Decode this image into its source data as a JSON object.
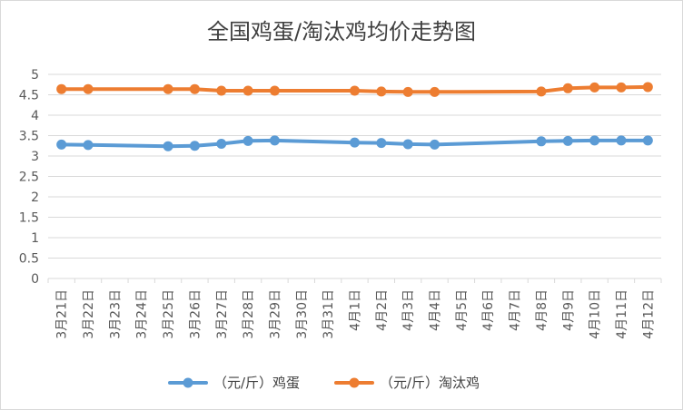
{
  "chart_data": {
    "type": "line",
    "title": "全国鸡蛋/淘汰鸡均价走势图",
    "xlabel": "",
    "ylabel": "",
    "ylim": [
      0,
      5
    ],
    "y_ticks": [
      "0",
      "0.5",
      "1",
      "1.5",
      "2",
      "2.5",
      "3",
      "3.5",
      "4",
      "4.5",
      "5"
    ],
    "grid": "horizontal",
    "legend_position": "bottom",
    "categories": [
      "3月21日",
      "3月22日",
      "3月23日",
      "3月24日",
      "3月25日",
      "3月26日",
      "3月27日",
      "3月28日",
      "3月29日",
      "3月30日",
      "3月31日",
      "4月1日",
      "4月2日",
      "4月3日",
      "4月4日",
      "4月5日",
      "4月6日",
      "4月7日",
      "4月8日",
      "4月9日",
      "4月10日",
      "4月11日",
      "4月12日"
    ],
    "series": [
      {
        "name": "（元/斤）鸡蛋",
        "color": "#5b9bd5",
        "values": [
          3.28,
          3.27,
          null,
          null,
          3.24,
          3.25,
          3.3,
          3.37,
          3.38,
          null,
          null,
          3.33,
          3.32,
          3.29,
          3.28,
          null,
          null,
          null,
          3.36,
          3.37,
          3.38,
          3.38,
          3.38
        ]
      },
      {
        "name": "（元/斤）淘汰鸡",
        "color": "#ed7d31",
        "values": [
          4.64,
          4.64,
          null,
          null,
          4.64,
          4.64,
          4.6,
          4.6,
          4.6,
          null,
          null,
          4.6,
          4.58,
          4.57,
          4.57,
          null,
          null,
          null,
          4.58,
          4.66,
          4.68,
          4.68,
          4.69
        ]
      }
    ]
  }
}
